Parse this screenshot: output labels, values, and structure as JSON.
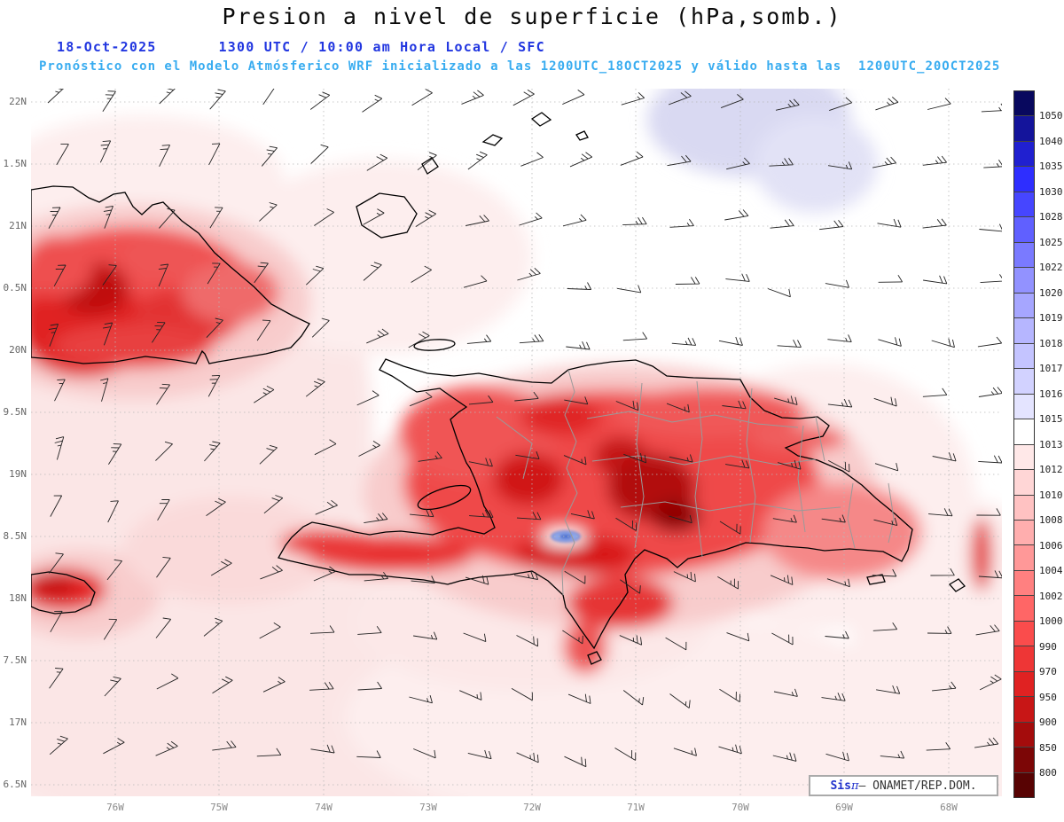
{
  "header": {
    "title": "Presion a nivel de superficie (hPa,somb.)",
    "date": "18-Oct-2025",
    "time": "1300 UTC / 10:00 am Hora Local / SFC",
    "forecast": "Pronóstico con el Modelo Atmósferico WRF inicializado a las 1200UTC_18OCT2025 y válido hasta las  1200UTC_20OCT2025"
  },
  "axes": {
    "lat_labels": [
      "22N",
      "1.5N",
      "21N",
      "0.5N",
      "20N",
      "9.5N",
      "19N",
      "8.5N",
      "18N",
      "7.5N",
      "17N",
      "6.5N"
    ],
    "lon_labels": [
      "76W",
      "75W",
      "74W",
      "73W",
      "72W",
      "71W",
      "70W",
      "69W",
      "68W"
    ]
  },
  "colorbar": {
    "unit": "hPa",
    "levels": [
      "1050",
      "1040",
      "1035",
      "1030",
      "1028",
      "1025",
      "1022",
      "1020",
      "1019",
      "1018",
      "1017",
      "1016",
      "1015",
      "1013",
      "1012",
      "1010",
      "1008",
      "1006",
      "1004",
      "1002",
      "1000",
      "990",
      "970",
      "950",
      "900",
      "850",
      "800"
    ],
    "colors": [
      "#08085e",
      "#14149b",
      "#2020d0",
      "#2e2eff",
      "#4646ff",
      "#6060ff",
      "#7a7aff",
      "#9292ff",
      "#a6a6ff",
      "#b6b6ff",
      "#c4c4ff",
      "#d2d2ff",
      "#e4e4ff",
      "#ffffff",
      "#ffe8e8",
      "#ffd6d6",
      "#ffc2c2",
      "#ffaeae",
      "#ff9898",
      "#ff8080",
      "#ff6666",
      "#fa4c4c",
      "#ee3636",
      "#e02222",
      "#c81616",
      "#a40c0c",
      "#7c0606",
      "#580303"
    ]
  },
  "branding": {
    "sis": "Sis",
    "pi": "π",
    "org": "– ONAMET/REP.DOM."
  }
}
